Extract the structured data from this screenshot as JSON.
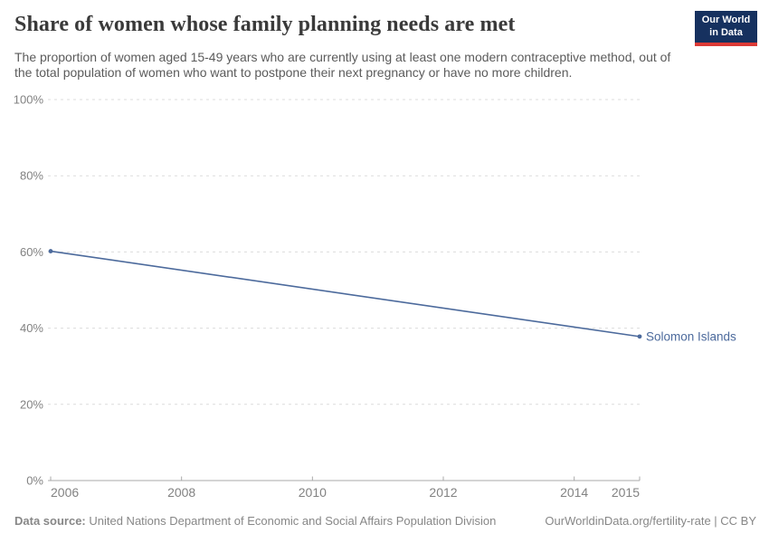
{
  "header": {
    "title": "Share of women whose family planning needs are met",
    "subtitle": "The proportion of women aged 15-49 years who are currently using at least one modern contraceptive method, out of the total population of women who want to postpone their next pregnancy or have no more children.",
    "logo_line1": "Our World",
    "logo_line2": "in Data"
  },
  "chart_data": {
    "type": "line",
    "title": "Share of women whose family planning needs are met",
    "xlabel": "",
    "ylabel": "",
    "xlim": [
      2006,
      2015
    ],
    "ylim": [
      0,
      100
    ],
    "grid": "horizontal-dashed",
    "legend_position": "end-of-line",
    "x_ticks": [
      2006,
      2008,
      2010,
      2012,
      2014,
      2015
    ],
    "y_ticks": [
      0,
      20,
      40,
      60,
      80,
      100
    ],
    "y_tick_suffix": "%",
    "series": [
      {
        "name": "Solomon Islands",
        "color": "#4c6a9c",
        "points": [
          {
            "x": 2006,
            "y": 60.2
          },
          {
            "x": 2015,
            "y": 37.8
          }
        ]
      }
    ]
  },
  "footer": {
    "source_label": "Data source:",
    "source_text": " United Nations Department of Economic and Social Affairs Population Division",
    "credit": "OurWorldinData.org/fertility-rate | CC BY"
  },
  "colors": {
    "accent_line": "#4c6a9c",
    "grid": "#dcdcdc",
    "axis": "#a9a9a9",
    "tick_label": "#828282",
    "logo_bg": "#16315f",
    "logo_stripe": "#dc3a36"
  }
}
